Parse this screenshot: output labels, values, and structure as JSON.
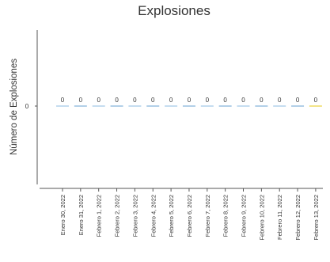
{
  "chart_data": {
    "type": "bar",
    "title": "Explosiones",
    "ylabel": "Número de Explosiones",
    "xlabel": "",
    "categories": [
      "Enero 30, 2022",
      "Enero 31, 2022",
      "Febrero 1, 2022",
      "Febrero 2, 2022",
      "Febrero 3, 2022",
      "Febrero 4, 2022",
      "Febrero 5, 2022",
      "Febrero 6, 2022",
      "Febrero 7, 2022",
      "Febrero 8, 2022",
      "Febrero 9, 2022",
      "Febrero 10, 2022",
      "Febrero 11, 2022",
      "Febrero 12, 2022",
      "Febrero 13, 2022"
    ],
    "values": [
      0,
      0,
      0,
      0,
      0,
      0,
      0,
      0,
      0,
      0,
      0,
      0,
      0,
      0,
      0
    ],
    "yticks": [
      "0"
    ],
    "data_labels": [
      "0",
      "0",
      "0",
      "0",
      "0",
      "0",
      "0",
      "0",
      "0",
      "0",
      "0",
      "0",
      "0",
      "0",
      "0"
    ],
    "colors": [
      "#9ec6e6",
      "#7fb0d8",
      "#9ec6e6",
      "#7fb0d8",
      "#9ec6e6",
      "#7fb0d8",
      "#9ec6e6",
      "#7fb0d8",
      "#9ec6e6",
      "#7fb0d8",
      "#9ec6e6",
      "#7fb0d8",
      "#9ec6e6",
      "#7fb0d8",
      "#e8d23a"
    ],
    "grid": false
  }
}
